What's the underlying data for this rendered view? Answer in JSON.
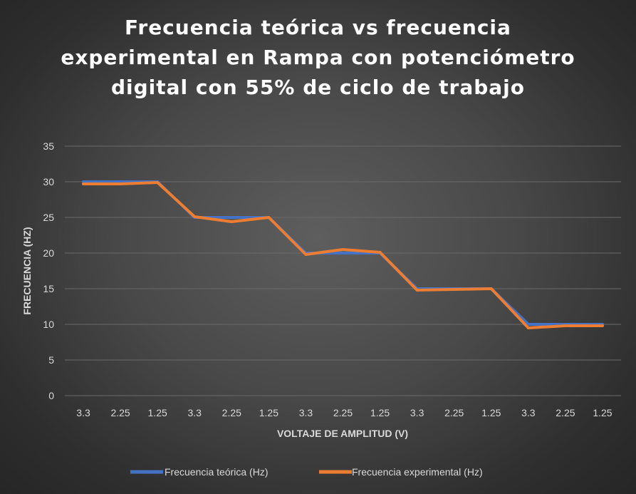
{
  "chart_data": {
    "type": "line",
    "title_lines": [
      "Frecuencia teórica vs frecuencia",
      "experimental en Rampa con potenciómetro",
      "digital con 55% de ciclo de trabajo"
    ],
    "xlabel": "VOLTAJE DE AMPLITUD (V)",
    "ylabel": "FRECUENCIA (HZ)",
    "categories": [
      "3.3",
      "2.25",
      "1.25",
      "3.3",
      "2.25",
      "1.25",
      "3.3",
      "2.25",
      "1.25",
      "3.3",
      "2.25",
      "1.25",
      "3.3",
      "2.25",
      "1.25"
    ],
    "ylim": [
      0,
      35
    ],
    "yticks": [
      0,
      5,
      10,
      15,
      20,
      25,
      30,
      35
    ],
    "grid": true,
    "legend_position": "bottom",
    "series": [
      {
        "name": "Frecuencia teórica (Hz)",
        "color": "#4472c4",
        "values": [
          30,
          30,
          30,
          25,
          25,
          25,
          20,
          20,
          20,
          15,
          15,
          15,
          10,
          10,
          10
        ]
      },
      {
        "name": "Frecuencia experimental (Hz)",
        "color": "#ed7d31",
        "values": [
          29.7,
          29.7,
          29.9,
          25.1,
          24.4,
          25.0,
          19.8,
          20.5,
          20.1,
          14.8,
          14.9,
          15.0,
          9.5,
          9.8,
          9.8
        ]
      }
    ]
  }
}
